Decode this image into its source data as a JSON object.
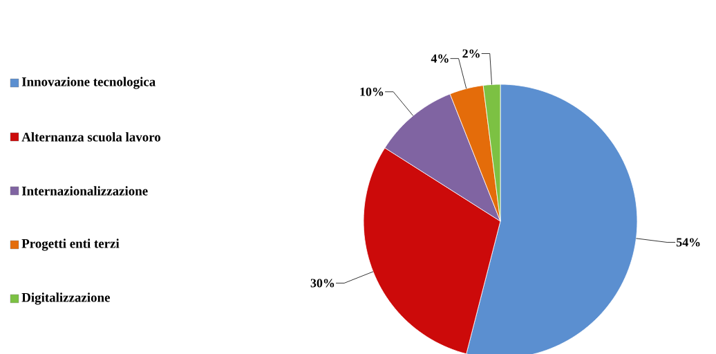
{
  "chart_data": {
    "type": "pie",
    "categories": [
      "Innovazione tecnologica",
      "Alternanza scuola lavoro",
      "Internazionalizzazione",
      "Progetti enti terzi",
      "Digitalizzazione"
    ],
    "values": [
      54,
      30,
      10,
      4,
      2
    ],
    "value_labels": [
      "54%",
      "30%",
      "10%",
      "4%",
      "2%"
    ],
    "colors": [
      "#5b8fd0",
      "#cc0a0a",
      "#8064a2",
      "#e46c0a",
      "#7cc143"
    ],
    "legend": "left"
  }
}
